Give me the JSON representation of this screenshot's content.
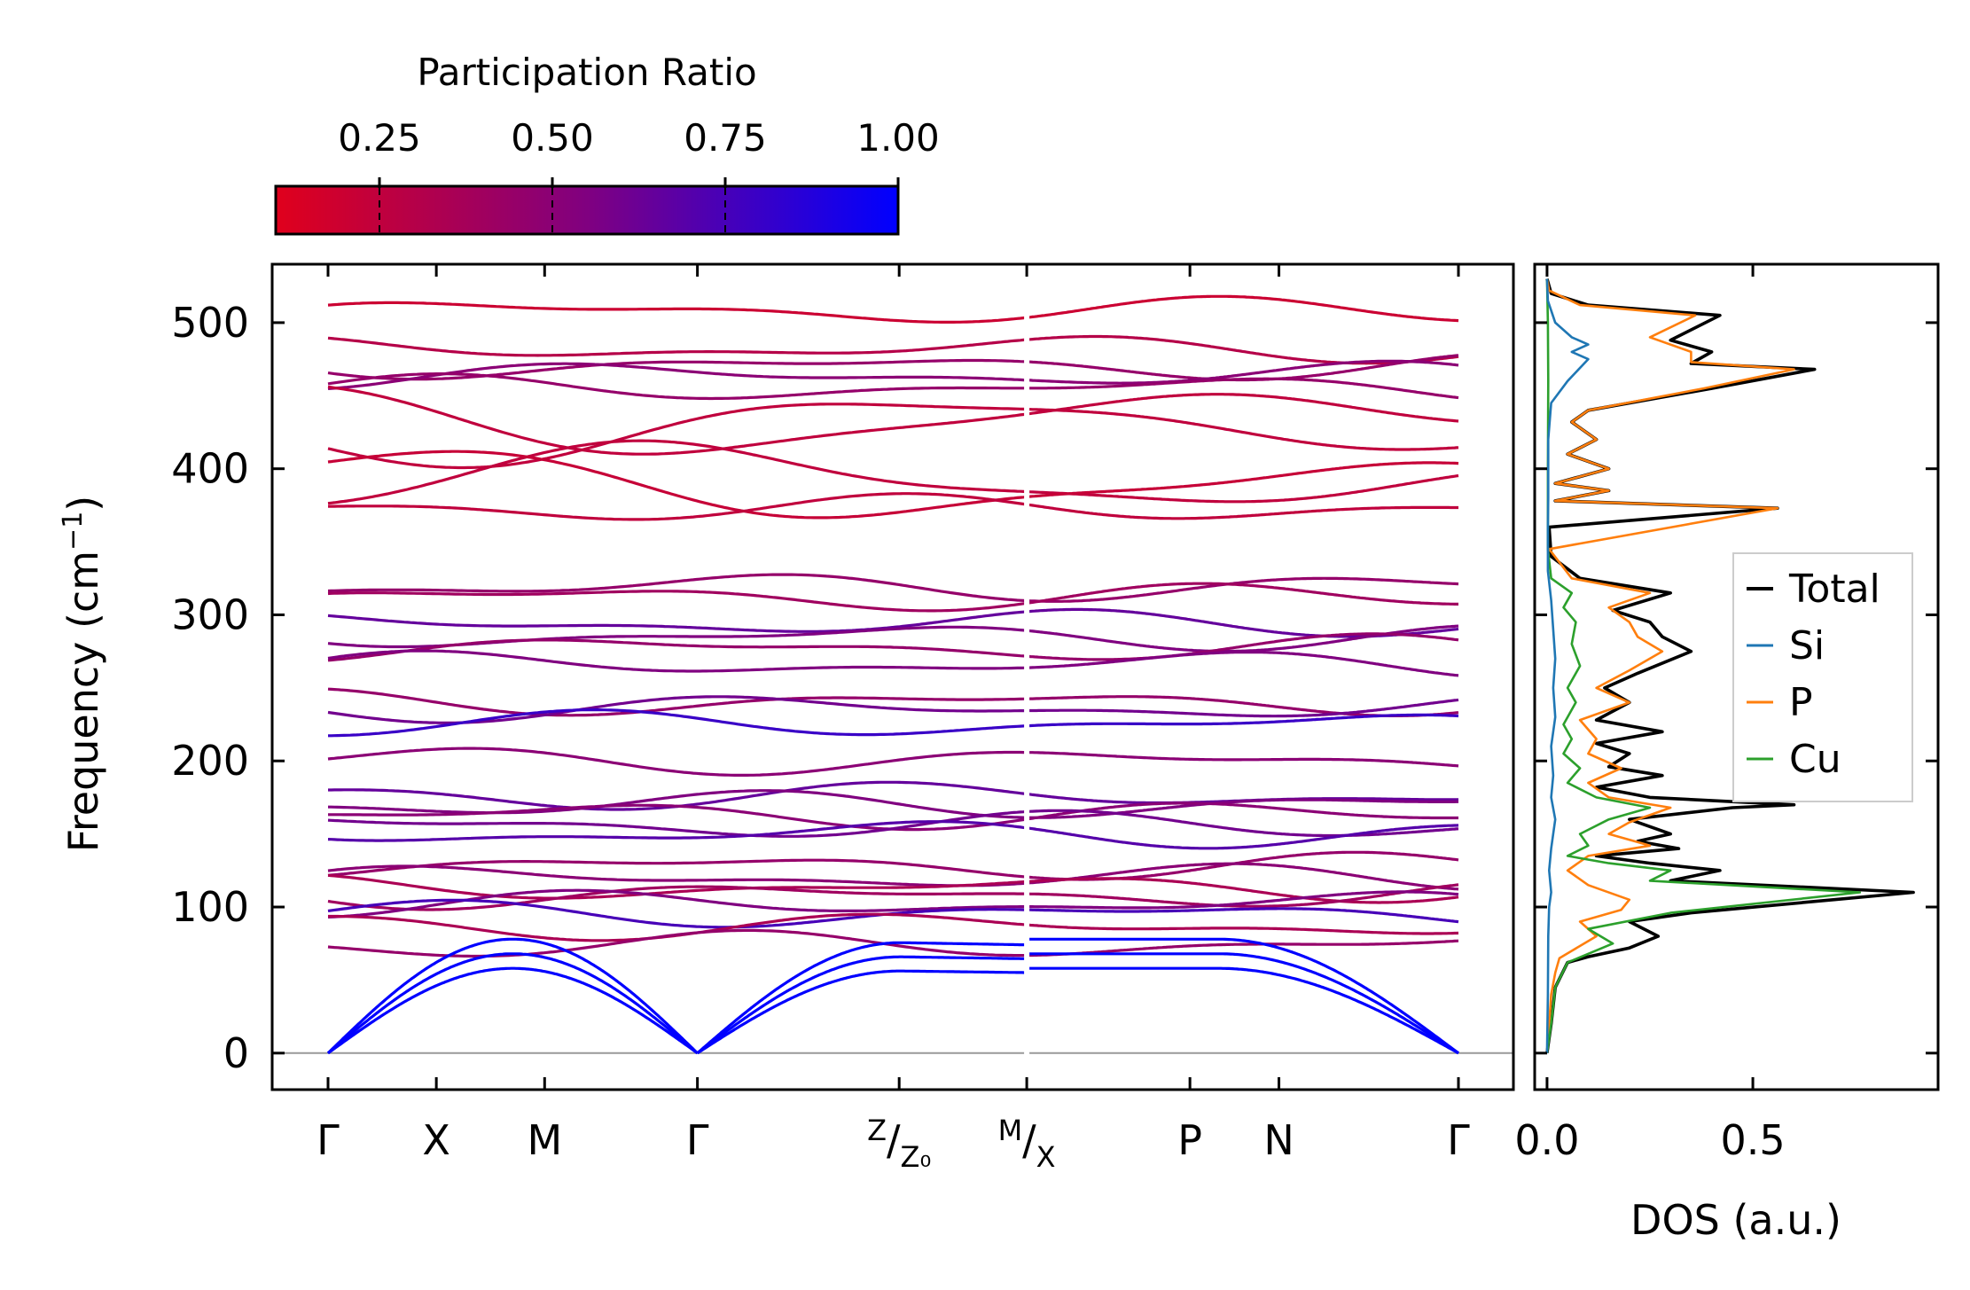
{
  "chart_data": [
    {
      "type": "line",
      "title": "",
      "ylabel": "Frequency (cm",
      "ylabel_sup": "−1",
      "ylabel_close": ")",
      "ylim": [
        -25,
        540
      ],
      "yticks": [
        0,
        100,
        200,
        300,
        400,
        500
      ],
      "kpath": {
        "labels": [
          "Γ",
          "X",
          "M",
          "Γ",
          "",
          "",
          "P",
          "N",
          "Γ"
        ],
        "split_labels": [
          {
            "top": "Z",
            "bottom": "Z₀"
          },
          {
            "top": "M",
            "bottom": "X"
          }
        ],
        "positions": [
          0,
          0.73,
          1.46,
          2.49,
          3.85,
          4.71,
          5.81,
          6.41,
          7.62
        ]
      },
      "colorbar": {
        "title": "Participation Ratio",
        "ticks": [
          "0.25",
          "0.50",
          "0.75",
          "1.00"
        ],
        "range": [
          0.1,
          1.0
        ],
        "low_color": "#e0001c",
        "high_color": "#0000ff"
      },
      "bands_note": "phonon dispersion colored by participation ratio",
      "flat_bands": [
        {
          "f": 508,
          "pr": 0.2
        },
        {
          "f": 482,
          "pr": 0.3
        },
        {
          "f": 470,
          "pr": 0.45
        },
        {
          "f": 464,
          "pr": 0.5
        },
        {
          "f": 455,
          "pr": 0.45
        },
        {
          "f": 433,
          "pr": 0.25
        },
        {
          "f": 428,
          "pr": 0.25
        },
        {
          "f": 393,
          "pr": 0.25
        },
        {
          "f": 388,
          "pr": 0.22
        },
        {
          "f": 373,
          "pr": 0.25
        },
        {
          "f": 319,
          "pr": 0.45
        },
        {
          "f": 312,
          "pr": 0.4
        },
        {
          "f": 294,
          "pr": 0.65
        },
        {
          "f": 285,
          "pr": 0.55
        },
        {
          "f": 277,
          "pr": 0.45
        },
        {
          "f": 266,
          "pr": 0.55
        },
        {
          "f": 240,
          "pr": 0.45
        },
        {
          "f": 236,
          "pr": 0.6
        },
        {
          "f": 225,
          "pr": 0.8
        },
        {
          "f": 200,
          "pr": 0.5
        },
        {
          "f": 176,
          "pr": 0.65
        },
        {
          "f": 170,
          "pr": 0.55
        },
        {
          "f": 163,
          "pr": 0.5
        },
        {
          "f": 156,
          "pr": 0.6
        },
        {
          "f": 150,
          "pr": 0.7
        },
        {
          "f": 128,
          "pr": 0.45
        },
        {
          "f": 120,
          "pr": 0.5
        },
        {
          "f": 113,
          "pr": 0.35
        },
        {
          "f": 108,
          "pr": 0.4
        },
        {
          "f": 102,
          "pr": 0.55
        },
        {
          "f": 95,
          "pr": 0.75
        },
        {
          "f": 87,
          "pr": 0.35
        },
        {
          "f": 74,
          "pr": 0.45
        }
      ],
      "acoustic": {
        "gamma_points": [
          0,
          2.49,
          7.62
        ],
        "zone_values": [
          58,
          68,
          78
        ],
        "pr": 1.0
      }
    },
    {
      "type": "line",
      "title": "",
      "xlabel": "DOS (a.u.)",
      "xlim": [
        -0.03,
        0.95
      ],
      "xticks": [
        "0.0",
        "0.5"
      ],
      "xtick_values": [
        0.0,
        0.5
      ],
      "ylim": [
        -25,
        540
      ],
      "legend": {
        "placement": "right",
        "entries": [
          "Total",
          "Si",
          "P",
          "Cu"
        ]
      },
      "series": [
        {
          "name": "Total",
          "color": "#000000",
          "points": [
            [
              0,
              0
            ],
            [
              0.01,
              20
            ],
            [
              0.02,
              45
            ],
            [
              0.05,
              62
            ],
            [
              0.1,
              66
            ],
            [
              0.2,
              72
            ],
            [
              0.27,
              80
            ],
            [
              0.2,
              90
            ],
            [
              0.35,
              96
            ],
            [
              0.89,
              110
            ],
            [
              0.3,
              118
            ],
            [
              0.42,
              125
            ],
            [
              0.25,
              130
            ],
            [
              0.12,
              135
            ],
            [
              0.32,
              140
            ],
            [
              0.22,
              145
            ],
            [
              0.3,
              150
            ],
            [
              0.2,
              160
            ],
            [
              0.45,
              168
            ],
            [
              0.6,
              170
            ],
            [
              0.25,
              175
            ],
            [
              0.12,
              182
            ],
            [
              0.28,
              190
            ],
            [
              0.15,
              196
            ],
            [
              0.2,
              205
            ],
            [
              0.12,
              212
            ],
            [
              0.28,
              220
            ],
            [
              0.12,
              228
            ],
            [
              0.2,
              240
            ],
            [
              0.14,
              250
            ],
            [
              0.22,
              260
            ],
            [
              0.35,
              275
            ],
            [
              0.28,
              285
            ],
            [
              0.25,
              295
            ],
            [
              0.16,
              303
            ],
            [
              0.3,
              315
            ],
            [
              0.08,
              325
            ],
            [
              0.01,
              340
            ],
            [
              0.005,
              360
            ],
            [
              0.56,
              373
            ],
            [
              0.02,
              378
            ],
            [
              0.15,
              385
            ],
            [
              0.02,
              390
            ],
            [
              0.15,
              400
            ],
            [
              0.05,
              410
            ],
            [
              0.12,
              420
            ],
            [
              0.06,
              432
            ],
            [
              0.1,
              440
            ],
            [
              0.4,
              455
            ],
            [
              0.65,
              468
            ],
            [
              0.35,
              472
            ],
            [
              0.4,
              480
            ],
            [
              0.3,
              488
            ],
            [
              0.42,
              505
            ],
            [
              0.1,
              512
            ],
            [
              0.01,
              520
            ],
            [
              0,
              530
            ]
          ]
        },
        {
          "name": "P",
          "color": "#ff7f0e",
          "points": [
            [
              0,
              0
            ],
            [
              0.005,
              20
            ],
            [
              0.01,
              40
            ],
            [
              0.02,
              55
            ],
            [
              0.03,
              65
            ],
            [
              0.06,
              70
            ],
            [
              0.12,
              80
            ],
            [
              0.08,
              90
            ],
            [
              0.18,
              98
            ],
            [
              0.2,
              105
            ],
            [
              0.1,
              115
            ],
            [
              0.05,
              125
            ],
            [
              0.1,
              135
            ],
            [
              0.25,
              142
            ],
            [
              0.15,
              150
            ],
            [
              0.2,
              158
            ],
            [
              0.3,
              168
            ],
            [
              0.15,
              175
            ],
            [
              0.1,
              185
            ],
            [
              0.18,
              195
            ],
            [
              0.1,
              205
            ],
            [
              0.12,
              215
            ],
            [
              0.08,
              228
            ],
            [
              0.2,
              240
            ],
            [
              0.12,
              250
            ],
            [
              0.2,
              262
            ],
            [
              0.28,
              275
            ],
            [
              0.22,
              285
            ],
            [
              0.2,
              295
            ],
            [
              0.15,
              305
            ],
            [
              0.25,
              315
            ],
            [
              0.06,
              325
            ],
            [
              0.005,
              345
            ],
            [
              0.56,
              373
            ],
            [
              0.02,
              378
            ],
            [
              0.15,
              385
            ],
            [
              0.02,
              390
            ],
            [
              0.15,
              400
            ],
            [
              0.05,
              410
            ],
            [
              0.12,
              420
            ],
            [
              0.06,
              432
            ],
            [
              0.1,
              440
            ],
            [
              0.38,
              455
            ],
            [
              0.6,
              468
            ],
            [
              0.35,
              473
            ],
            [
              0.35,
              480
            ],
            [
              0.25,
              490
            ],
            [
              0.36,
              505
            ],
            [
              0.08,
              512
            ],
            [
              0.005,
              522
            ],
            [
              0,
              530
            ]
          ]
        },
        {
          "name": "Cu",
          "color": "#2ca02c",
          "points": [
            [
              0,
              0
            ],
            [
              0.01,
              20
            ],
            [
              0.02,
              45
            ],
            [
              0.05,
              62
            ],
            [
              0.1,
              68
            ],
            [
              0.16,
              75
            ],
            [
              0.1,
              85
            ],
            [
              0.3,
              96
            ],
            [
              0.76,
              110
            ],
            [
              0.25,
              118
            ],
            [
              0.3,
              125
            ],
            [
              0.15,
              130
            ],
            [
              0.05,
              135
            ],
            [
              0.1,
              142
            ],
            [
              0.08,
              150
            ],
            [
              0.15,
              160
            ],
            [
              0.25,
              168
            ],
            [
              0.12,
              175
            ],
            [
              0.05,
              185
            ],
            [
              0.08,
              195
            ],
            [
              0.04,
              205
            ],
            [
              0.06,
              215
            ],
            [
              0.04,
              225
            ],
            [
              0.07,
              240
            ],
            [
              0.05,
              250
            ],
            [
              0.08,
              265
            ],
            [
              0.06,
              280
            ],
            [
              0.07,
              295
            ],
            [
              0.04,
              305
            ],
            [
              0.06,
              315
            ],
            [
              0.01,
              325
            ],
            [
              0.002,
              345
            ],
            [
              0.002,
              400
            ],
            [
              0.003,
              460
            ],
            [
              0.002,
              500
            ],
            [
              0,
              530
            ]
          ]
        },
        {
          "name": "Si",
          "color": "#1f77b4",
          "points": [
            [
              0,
              0
            ],
            [
              0.002,
              40
            ],
            [
              0.003,
              80
            ],
            [
              0.005,
              100
            ],
            [
              0.01,
              110
            ],
            [
              0.005,
              125
            ],
            [
              0.01,
              140
            ],
            [
              0.015,
              150
            ],
            [
              0.02,
              160
            ],
            [
              0.01,
              175
            ],
            [
              0.015,
              190
            ],
            [
              0.01,
              210
            ],
            [
              0.02,
              230
            ],
            [
              0.015,
              250
            ],
            [
              0.02,
              270
            ],
            [
              0.015,
              290
            ],
            [
              0.01,
              310
            ],
            [
              0.002,
              330
            ],
            [
              0.002,
              360
            ],
            [
              0.003,
              380
            ],
            [
              0.003,
              420
            ],
            [
              0.01,
              445
            ],
            [
              0.05,
              460
            ],
            [
              0.1,
              475
            ],
            [
              0.06,
              480
            ],
            [
              0.1,
              485
            ],
            [
              0.06,
              490
            ],
            [
              0.02,
              500
            ],
            [
              0.002,
              515
            ],
            [
              0,
              530
            ]
          ]
        }
      ]
    }
  ]
}
